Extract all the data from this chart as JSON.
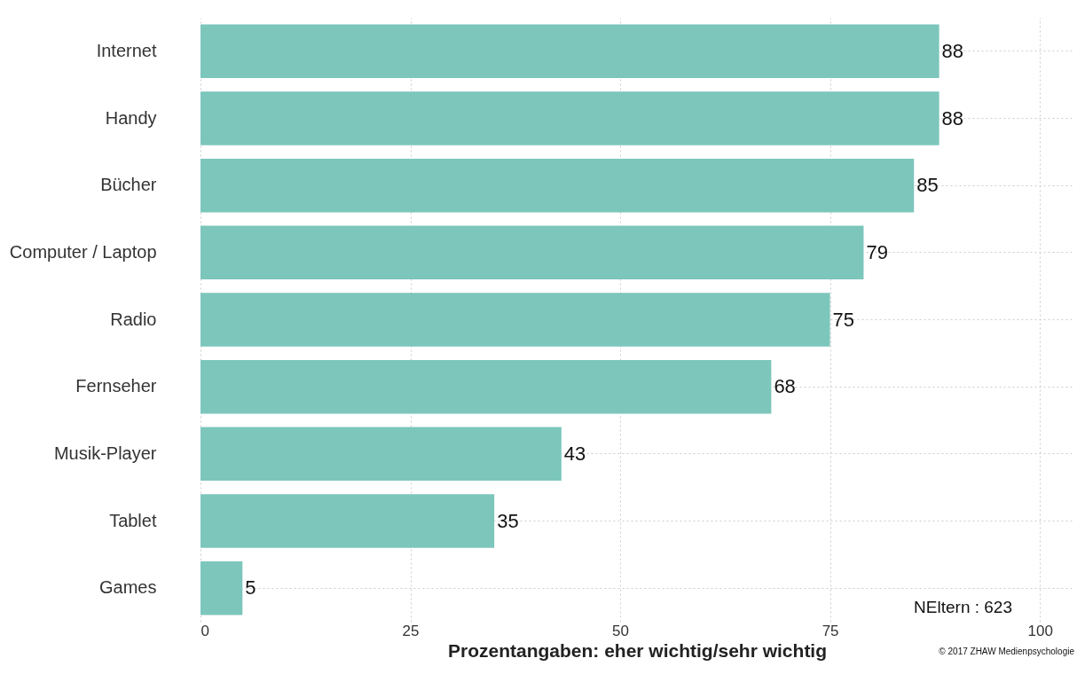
{
  "chart_data": {
    "type": "bar",
    "orientation": "horizontal",
    "xlabel": "Prozentangaben: eher wichtig/sehr wichtig",
    "categories": [
      "Internet",
      "Handy",
      "Bücher",
      "Computer / Laptop",
      "Radio",
      "Fernseher",
      "Musik-Player",
      "Tablet",
      "Games"
    ],
    "values": [
      88,
      88,
      85,
      79,
      75,
      68,
      43,
      35,
      5
    ],
    "color": "#7cc6bc",
    "data_labels": true,
    "xlim": [
      0,
      104
    ],
    "xticks": [
      0,
      25,
      50,
      75,
      100
    ],
    "grid": true,
    "annotations": [
      "NEltern : 623",
      "© 2017 ZHAW Medienpsychologie"
    ]
  }
}
